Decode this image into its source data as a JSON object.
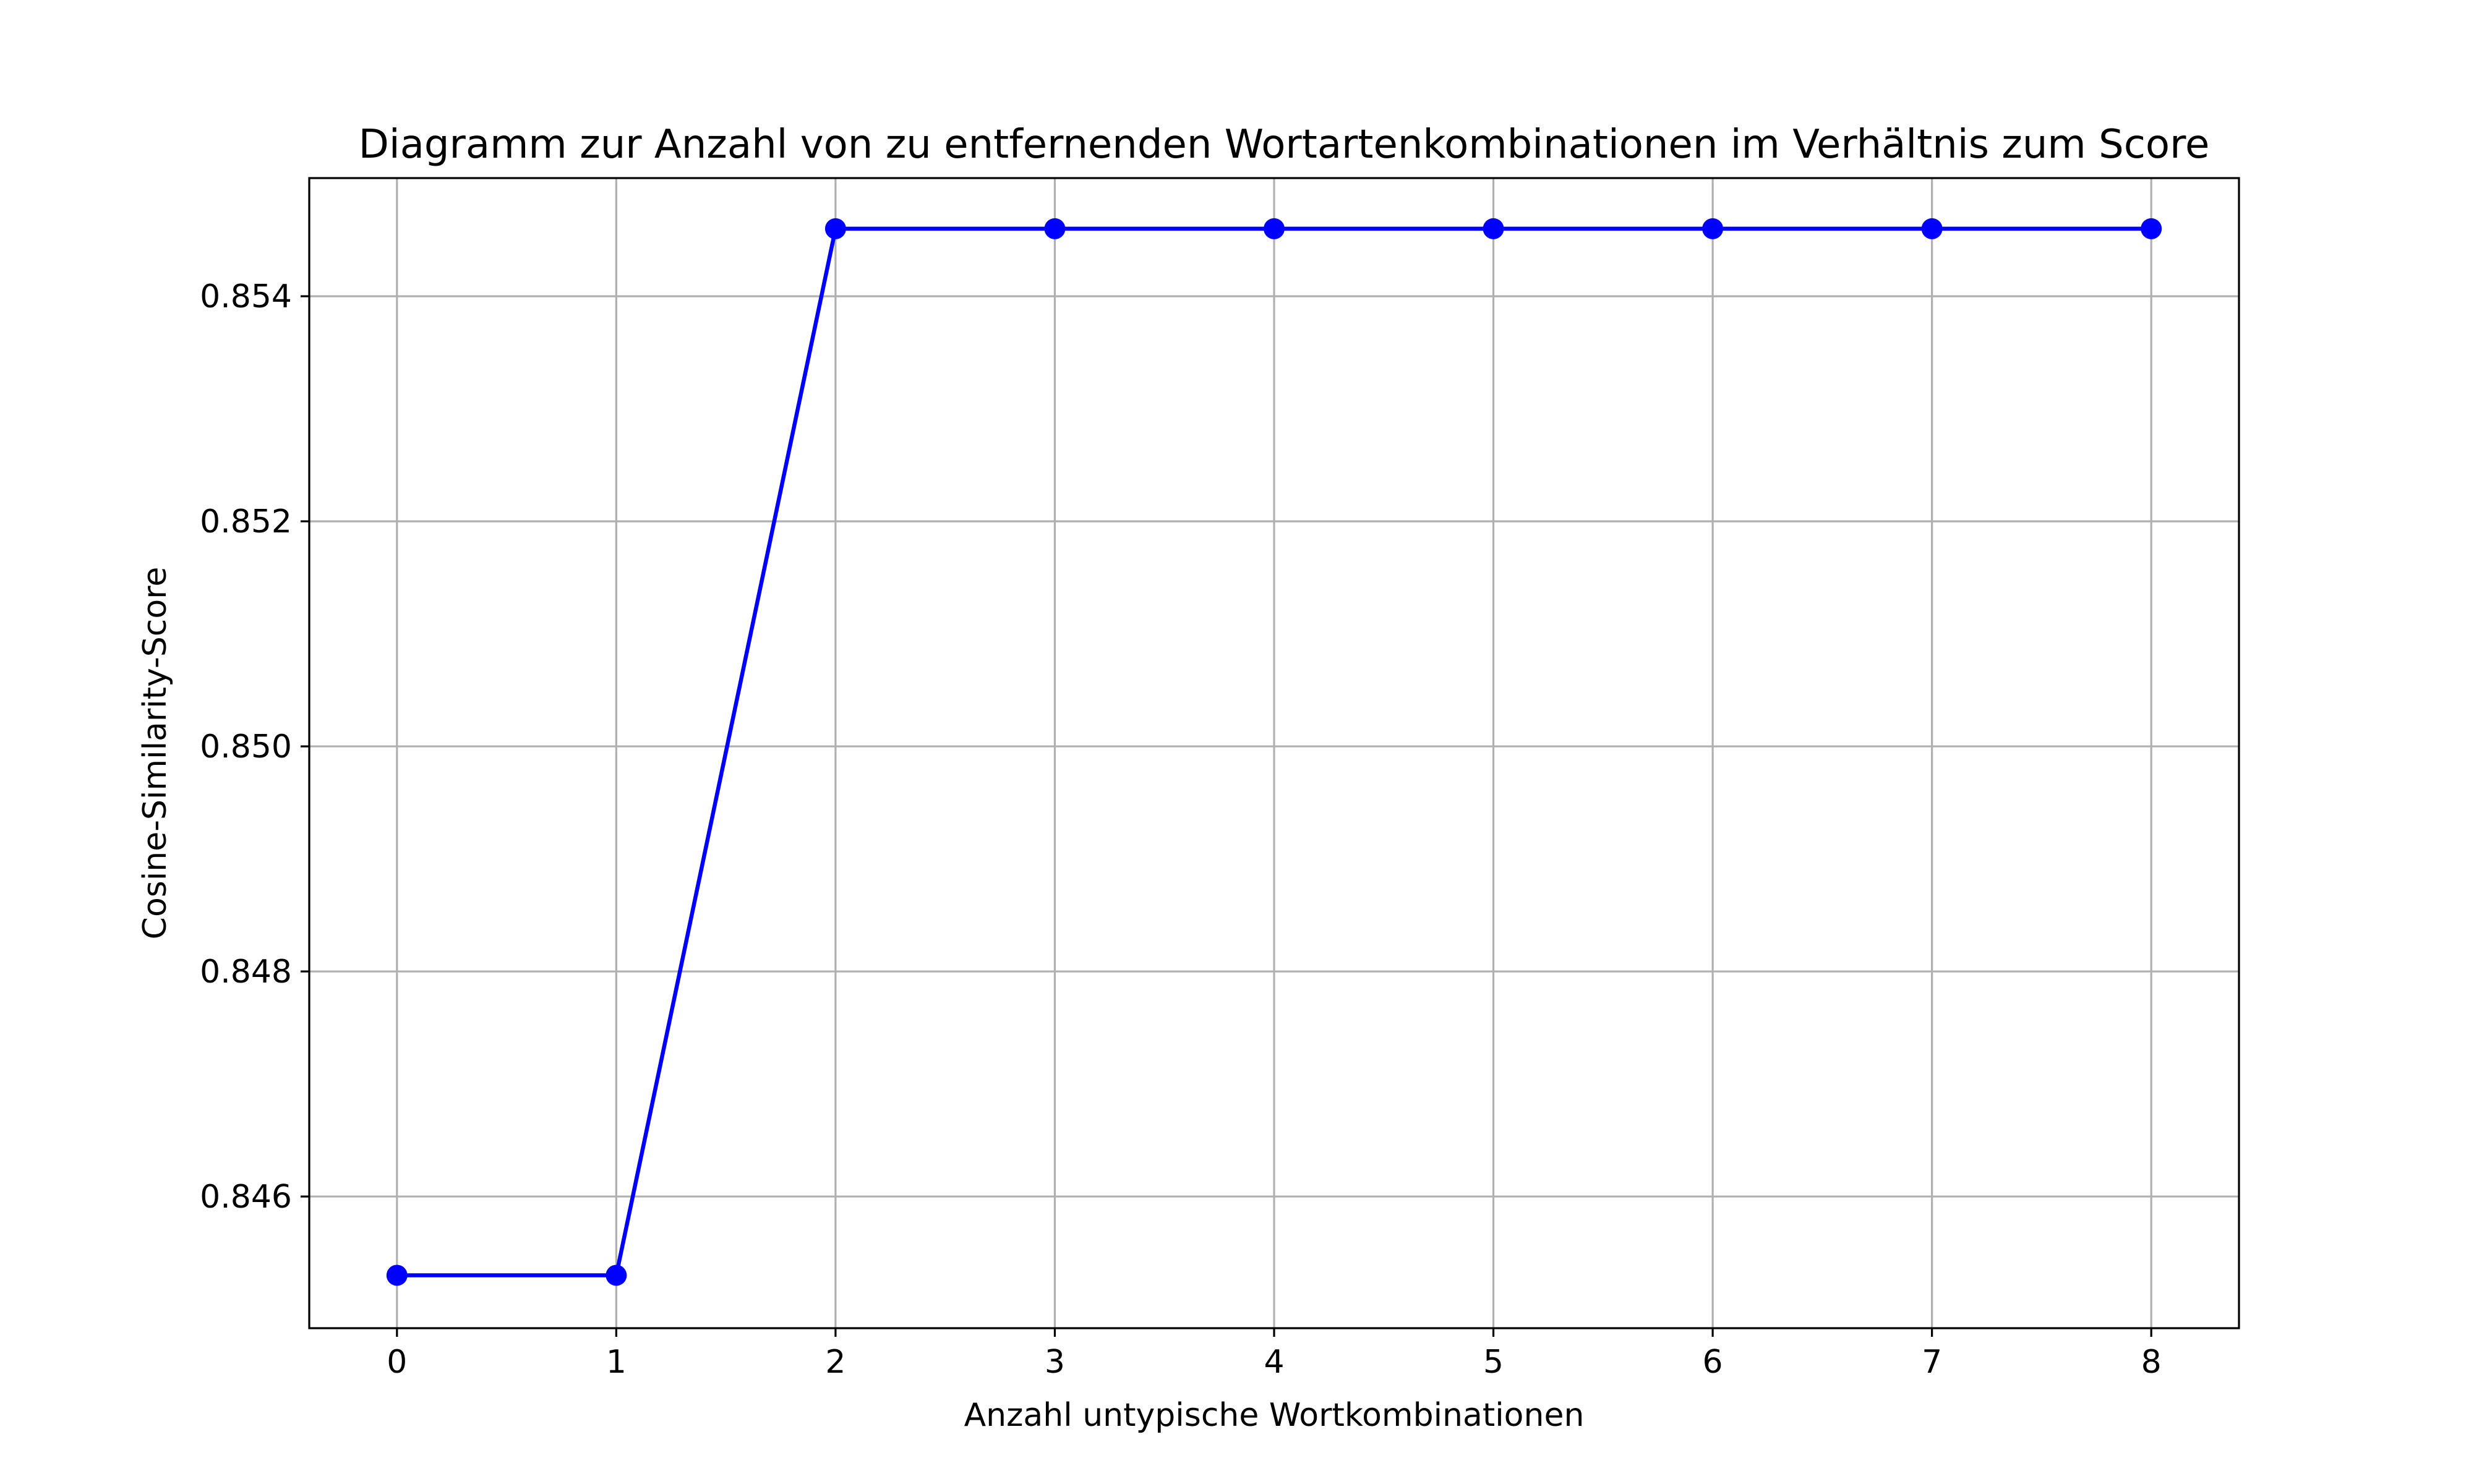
{
  "chart_data": {
    "type": "line",
    "title": "Diagramm zur Anzahl von zu entfernenden Wortartenkombinationen im Verhältnis zum Score",
    "xlabel": "Anzahl untypische Wortkombinationen",
    "ylabel": "Cosine-Similarity-Score",
    "x": [
      0,
      1,
      2,
      3,
      4,
      5,
      6,
      7,
      8
    ],
    "series": [
      {
        "values": [
          0.8453,
          0.8453,
          0.8546,
          0.8546,
          0.8546,
          0.8546,
          0.8546,
          0.8546,
          0.8546
        ],
        "color": "#0000ff",
        "marker": "circle"
      }
    ],
    "xlim": [
      -0.4,
      8.4
    ],
    "ylim": [
      0.84483,
      0.85505
    ],
    "xticks": [
      0,
      1,
      2,
      3,
      4,
      5,
      6,
      7,
      8
    ],
    "xtick_labels": [
      "0",
      "1",
      "2",
      "3",
      "4",
      "5",
      "6",
      "7",
      "8"
    ],
    "yticks": [
      0.846,
      0.848,
      0.85,
      0.852,
      0.854
    ],
    "ytick_labels": [
      "0.846",
      "0.848",
      "0.850",
      "0.852",
      "0.854"
    ],
    "grid": true,
    "legend": "none"
  }
}
